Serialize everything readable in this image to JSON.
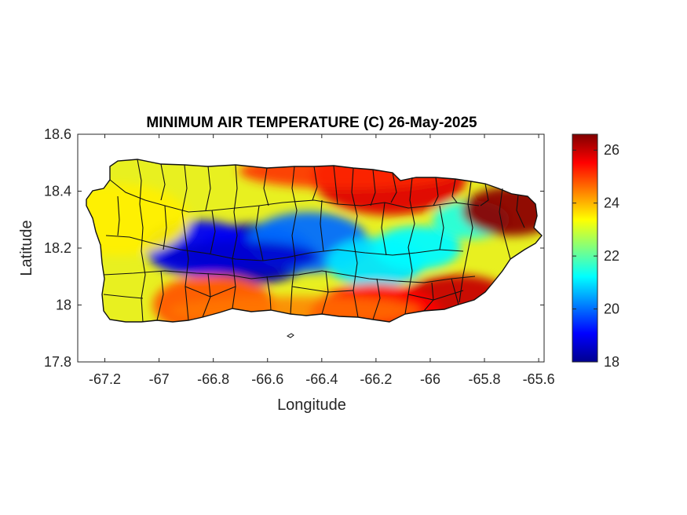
{
  "chart_data": {
    "type": "heatmap",
    "title": "MINIMUM AIR TEMPERATURE (C) 26-May-2025",
    "xlabel": "Longitude",
    "ylabel": "Latitude",
    "xlim": [
      -67.3,
      -65.58
    ],
    "ylim": [
      17.8,
      18.6
    ],
    "xticks": [
      -67.2,
      -67,
      -66.8,
      -66.6,
      -66.4,
      -66.2,
      -66,
      -65.8,
      -65.6
    ],
    "xtick_labels": [
      "-67.2",
      "-67",
      "-66.8",
      "-66.6",
      "-66.4",
      "-66.2",
      "-66",
      "-65.8",
      "-65.6"
    ],
    "yticks": [
      17.8,
      18,
      18.2,
      18.4,
      18.6
    ],
    "ytick_labels": [
      "17.8",
      "18",
      "18.2",
      "18.4",
      "18.6"
    ],
    "colorbar": {
      "colormap": "jet",
      "range": [
        18,
        26.6
      ],
      "ticks": [
        18,
        20,
        22,
        24,
        26
      ],
      "tick_labels": [
        "18",
        "20",
        "22",
        "24",
        "26"
      ]
    },
    "grid": false,
    "region": "Puerto Rico (municipality boundaries overlaid)",
    "hotspots": [
      {
        "lon": -66.65,
        "lat": 18.18,
        "value": 18.3
      },
      {
        "lon": -66.85,
        "lat": 18.2,
        "value": 19.0
      },
      {
        "lon": -66.45,
        "lat": 18.22,
        "value": 20.0
      },
      {
        "lon": -66.2,
        "lat": 18.15,
        "value": 21.0
      },
      {
        "lon": -66.05,
        "lat": 18.2,
        "value": 21.2
      },
      {
        "lon": -65.85,
        "lat": 18.3,
        "value": 21.5
      },
      {
        "lon": -66.15,
        "lat": 18.45,
        "value": 25.8
      },
      {
        "lon": -65.7,
        "lat": 18.33,
        "value": 26.5
      },
      {
        "lon": -65.9,
        "lat": 18.0,
        "value": 26.0
      },
      {
        "lon": -66.2,
        "lat": 17.96,
        "value": 25.5
      },
      {
        "lon": -66.8,
        "lat": 18.0,
        "value": 24.8
      },
      {
        "lon": -67.15,
        "lat": 18.3,
        "value": 23.5
      }
    ]
  }
}
